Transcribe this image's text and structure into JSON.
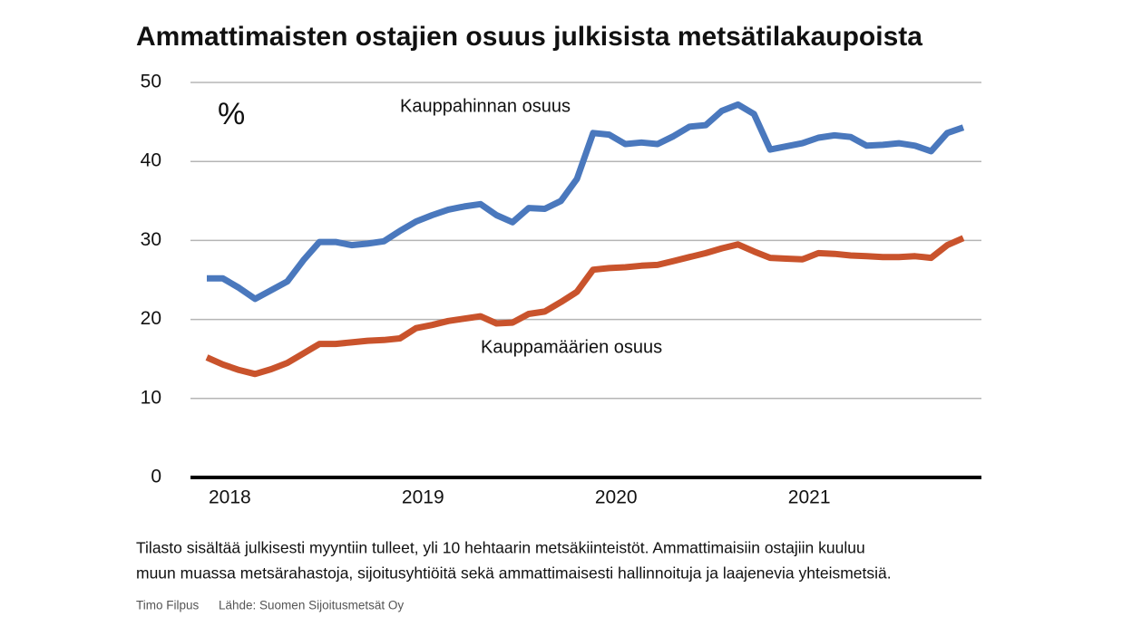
{
  "chart_data": {
    "type": "line",
    "title": "Ammattimaisten ostajien osuus julkisista metsätilakaupoista",
    "unit_label": "%",
    "categories": [
      "2018",
      null,
      null,
      null,
      null,
      null,
      null,
      null,
      null,
      null,
      null,
      null,
      "2019",
      null,
      null,
      null,
      null,
      null,
      null,
      null,
      null,
      null,
      null,
      null,
      "2020",
      null,
      null,
      null,
      null,
      null,
      null,
      null,
      null,
      null,
      null,
      null,
      "2021",
      null,
      null,
      null,
      null,
      null,
      null,
      null,
      null,
      null,
      null,
      null
    ],
    "series": [
      {
        "name": "Kauppahinnan osuus",
        "color": "#4a78bd",
        "values": [
          25.2,
          25.2,
          24.0,
          22.6,
          23.7,
          24.8,
          27.5,
          29.8,
          29.8,
          29.4,
          29.6,
          29.9,
          31.2,
          32.4,
          33.2,
          33.9,
          34.3,
          34.6,
          33.2,
          32.3,
          34.1,
          34.0,
          35.0,
          37.8,
          43.6,
          43.4,
          42.2,
          42.4,
          42.2,
          43.2,
          44.4,
          44.6,
          46.4,
          47.2,
          46.0,
          41.5,
          41.9,
          42.3,
          43.0,
          43.3,
          43.1,
          42.0,
          42.1,
          42.3,
          42.0,
          41.3,
          43.6,
          44.3
        ]
      },
      {
        "name": "Kauppamäärien osuus",
        "color": "#c9532c",
        "values": [
          15.2,
          14.3,
          13.6,
          13.1,
          13.7,
          14.5,
          15.7,
          16.9,
          16.9,
          17.1,
          17.3,
          17.4,
          17.6,
          18.9,
          19.3,
          19.8,
          20.1,
          20.4,
          19.5,
          19.6,
          20.7,
          21.0,
          22.2,
          23.5,
          26.3,
          26.5,
          26.6,
          26.8,
          26.9,
          27.4,
          27.9,
          28.4,
          29.0,
          29.5,
          28.6,
          27.8,
          27.7,
          27.6,
          28.4,
          28.3,
          28.1,
          28.0,
          27.9,
          27.9,
          28.0,
          27.8,
          29.4,
          30.3
        ]
      }
    ],
    "ylim": [
      0,
      50
    ],
    "yticks": [
      0,
      10,
      20,
      30,
      40,
      50
    ],
    "grid": true,
    "caption": [
      "Tilasto sisältää julkisesti myyntiin tulleet, yli 10 hehtaarin metsäkiinteistöt. Ammattimaisiin ostajiin kuuluu",
      "muun muassa metsärahastoja, sijoitusyhtiöitä sekä ammattimaisesti hallinnoituja ja laajenevia yhteismetsiä."
    ],
    "credit": "Timo Filpus",
    "source": "Lähde: Suomen Sijoitusmetsät Oy"
  }
}
